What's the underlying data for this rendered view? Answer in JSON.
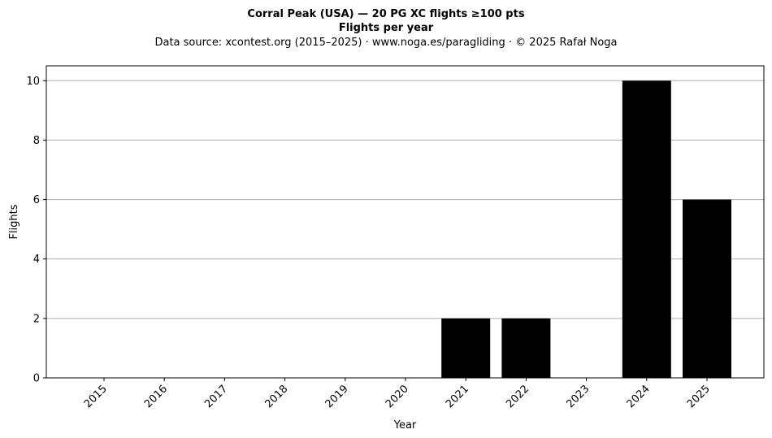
{
  "chart_data": {
    "type": "bar",
    "title": "Corral Peak (USA)  —  20 PG XC flights ≥100 pts",
    "subtitle": "Flights per year",
    "source_line": "Data source: xcontest.org (2015–2025)  ·  www.noga.es/paragliding  ·  © 2025 Rafał Noga",
    "xlabel": "Year",
    "ylabel": "Flights",
    "categories": [
      "2015",
      "2016",
      "2017",
      "2018",
      "2019",
      "2020",
      "2021",
      "2022",
      "2023",
      "2024",
      "2025"
    ],
    "values": [
      0,
      0,
      0,
      0,
      0,
      0,
      2,
      2,
      0,
      10,
      6
    ],
    "ylim": [
      0,
      10.5
    ],
    "yticks": [
      0,
      2,
      4,
      6,
      8,
      10
    ],
    "grid": "horizontal",
    "bar_color": "#000000",
    "grid_color": "#b0b0b0"
  }
}
